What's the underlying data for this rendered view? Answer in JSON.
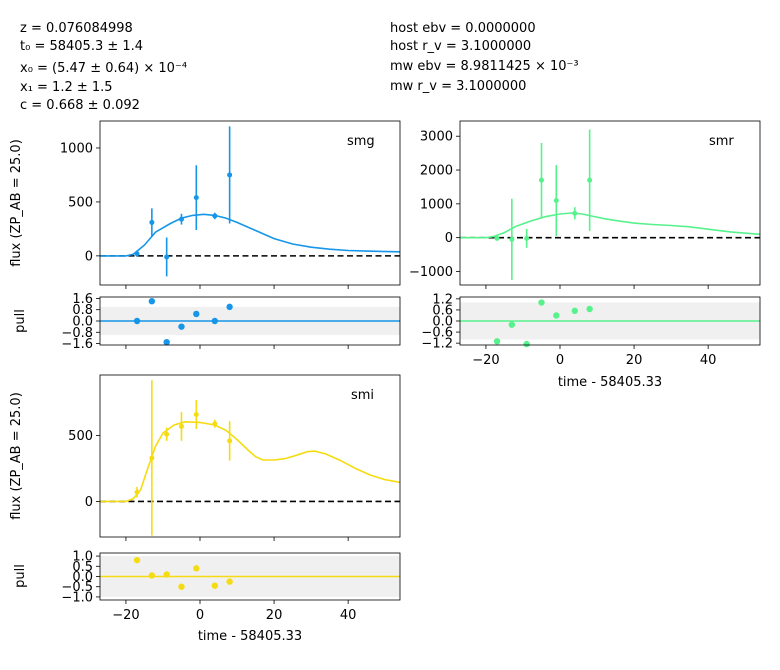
{
  "fit_params": {
    "left": [
      "z = 0.076084998",
      "t₀ = 58405.3 ± 1.4",
      "x₀ = (5.47 ± 0.64) × 10⁻⁴",
      "x₁ = 1.2 ± 1.5",
      "c = 0.668 ± 0.092"
    ],
    "right": [
      "host ebv = 0.0000000",
      "host r_v = 3.1000000",
      "mw ebv = 8.9811425 × 10⁻³",
      "mw r_v = 3.1000000"
    ]
  },
  "chart_data": [
    {
      "type": "scatter",
      "panel": "smg",
      "band": "smg",
      "color": "#1696e8",
      "ylabel": "flux (ZP_AB = 25.0)",
      "xlabel": "",
      "xlim": [
        -27,
        54
      ],
      "ylim": [
        -270,
        1250
      ],
      "yticks": [
        0,
        500,
        1000
      ],
      "xticks": [
        -20,
        0,
        20,
        40
      ],
      "zero_line": true,
      "points": [
        {
          "x": -17,
          "y": 20,
          "err": 30
        },
        {
          "x": -13,
          "y": 310,
          "err": 130
        },
        {
          "x": -9,
          "y": -10,
          "err": 180
        },
        {
          "x": -5,
          "y": 340,
          "err": 50
        },
        {
          "x": -1,
          "y": 540,
          "err": 300
        },
        {
          "x": 4,
          "y": 370,
          "err": 30
        },
        {
          "x": 8,
          "y": 750,
          "err": 450
        }
      ],
      "model": [
        [
          -27,
          0
        ],
        [
          -20,
          0
        ],
        [
          -18,
          15
        ],
        [
          -15,
          100
        ],
        [
          -12,
          220
        ],
        [
          -8,
          300
        ],
        [
          -5,
          350
        ],
        [
          -2,
          375
        ],
        [
          1,
          385
        ],
        [
          4,
          375
        ],
        [
          7,
          350
        ],
        [
          10,
          310
        ],
        [
          15,
          235
        ],
        [
          20,
          160
        ],
        [
          25,
          110
        ],
        [
          30,
          80
        ],
        [
          35,
          62
        ],
        [
          40,
          50
        ],
        [
          45,
          44
        ],
        [
          54,
          38
        ]
      ]
    },
    {
      "type": "scatter",
      "panel": "smg-pull",
      "color": "#1696e8",
      "ylabel": "pull",
      "xlim": [
        -27,
        54
      ],
      "ylim": [
        -1.7,
        1.7
      ],
      "yticks": [
        -1.6,
        -0.8,
        0.0,
        0.8,
        1.6
      ],
      "ytick_labels": [
        "−1.6",
        "−0.8",
        "0.0",
        "0.8",
        "1.6"
      ],
      "xticks": [
        -20,
        0,
        20,
        40
      ],
      "band_limits": [
        -1,
        1
      ],
      "points": [
        {
          "x": -17,
          "y": 0.0
        },
        {
          "x": -13,
          "y": 1.4
        },
        {
          "x": -9,
          "y": -1.5
        },
        {
          "x": -5,
          "y": -0.4
        },
        {
          "x": -1,
          "y": 0.5
        },
        {
          "x": 4,
          "y": 0.0
        },
        {
          "x": 8,
          "y": 1.0
        }
      ]
    },
    {
      "type": "scatter",
      "panel": "smr",
      "band": "smr",
      "color": "#57f28c",
      "ylabel": "",
      "xlabel": "",
      "xlim": [
        -27,
        54
      ],
      "ylim": [
        -1400,
        3450
      ],
      "yticks": [
        -1000,
        0,
        1000,
        2000,
        3000
      ],
      "ytick_labels": [
        "−1000",
        "0",
        "1000",
        "2000",
        "3000"
      ],
      "xticks": [
        -20,
        0,
        20,
        40
      ],
      "zero_line": true,
      "points": [
        {
          "x": -17,
          "y": -20,
          "err": 60
        },
        {
          "x": -13,
          "y": -50,
          "err": 1200
        },
        {
          "x": -9,
          "y": -20,
          "err": 280
        },
        {
          "x": -5,
          "y": 1700,
          "err": 1100
        },
        {
          "x": -1,
          "y": 1100,
          "err": 1050
        },
        {
          "x": 4,
          "y": 720,
          "err": 180
        },
        {
          "x": 8,
          "y": 1700,
          "err": 1500
        }
      ],
      "model": [
        [
          -27,
          0
        ],
        [
          -20,
          0
        ],
        [
          -18,
          30
        ],
        [
          -15,
          150
        ],
        [
          -12,
          330
        ],
        [
          -8,
          490
        ],
        [
          -4,
          620
        ],
        [
          0,
          700
        ],
        [
          3,
          730
        ],
        [
          6,
          700
        ],
        [
          9,
          630
        ],
        [
          12,
          560
        ],
        [
          16,
          490
        ],
        [
          20,
          430
        ],
        [
          25,
          390
        ],
        [
          30,
          360
        ],
        [
          35,
          320
        ],
        [
          40,
          250
        ],
        [
          46,
          170
        ],
        [
          54,
          100
        ]
      ]
    },
    {
      "type": "scatter",
      "panel": "smr-pull",
      "color": "#57f28c",
      "ylabel": "",
      "xlabel": "time - 58405.33",
      "xlim": [
        -27,
        54
      ],
      "ylim": [
        -1.3,
        1.3
      ],
      "yticks": [
        -1.2,
        -0.6,
        0.0,
        0.6,
        1.2
      ],
      "ytick_labels": [
        "−1.2",
        "−0.6",
        "0.0",
        "0.6",
        "1.2"
      ],
      "xticks": [
        -20,
        0,
        20,
        40
      ],
      "xtick_labels": [
        "−20",
        "0",
        "20",
        "40"
      ],
      "band_limits": [
        -1,
        1
      ],
      "points": [
        {
          "x": -17,
          "y": -1.1
        },
        {
          "x": -13,
          "y": -0.2
        },
        {
          "x": -9,
          "y": -1.25
        },
        {
          "x": -5,
          "y": 1.0
        },
        {
          "x": -1,
          "y": 0.3
        },
        {
          "x": 4,
          "y": 0.55
        },
        {
          "x": 8,
          "y": 0.65
        }
      ]
    },
    {
      "type": "scatter",
      "panel": "smi",
      "band": "smi",
      "color": "#f5dc12",
      "ylabel": "flux (ZP_AB = 25.0)",
      "xlabel": "",
      "xlim": [
        -27,
        54
      ],
      "ylim": [
        -270,
        960
      ],
      "yticks": [
        0,
        500
      ],
      "xticks": [
        -20,
        0,
        20,
        40
      ],
      "zero_line": true,
      "points": [
        {
          "x": -17,
          "y": 70,
          "err": 40
        },
        {
          "x": -13,
          "y": 330,
          "err": 590
        },
        {
          "x": -9,
          "y": 510,
          "err": 50
        },
        {
          "x": -5,
          "y": 570,
          "err": 110
        },
        {
          "x": -1,
          "y": 660,
          "err": 110
        },
        {
          "x": 4,
          "y": 590,
          "err": 30
        },
        {
          "x": 8,
          "y": 460,
          "err": 150
        }
      ],
      "model": [
        [
          -27,
          0
        ],
        [
          -20,
          0
        ],
        [
          -18,
          20
        ],
        [
          -16,
          90
        ],
        [
          -14,
          260
        ],
        [
          -12,
          420
        ],
        [
          -10,
          520
        ],
        [
          -7,
          580
        ],
        [
          -4,
          605
        ],
        [
          0,
          600
        ],
        [
          4,
          580
        ],
        [
          7,
          540
        ],
        [
          10,
          470
        ],
        [
          13,
          390
        ],
        [
          15,
          340
        ],
        [
          17,
          315
        ],
        [
          20,
          315
        ],
        [
          23,
          325
        ],
        [
          26,
          350
        ],
        [
          29,
          378
        ],
        [
          31,
          382
        ],
        [
          34,
          360
        ],
        [
          38,
          310
        ],
        [
          42,
          250
        ],
        [
          46,
          200
        ],
        [
          50,
          165
        ],
        [
          54,
          145
        ]
      ]
    },
    {
      "type": "scatter",
      "panel": "smi-pull",
      "color": "#f5dc12",
      "ylabel": "pull",
      "xlabel": "time - 58405.33",
      "xlim": [
        -27,
        54
      ],
      "ylim": [
        -1.15,
        1.15
      ],
      "yticks": [
        -1.0,
        -0.5,
        0.0,
        0.5,
        1.0
      ],
      "ytick_labels": [
        "−1.0",
        "−0.5",
        "0.0",
        "0.5",
        "1.0"
      ],
      "xticks": [
        -20,
        0,
        20,
        40
      ],
      "xtick_labels": [
        "−20",
        "0",
        "20",
        "40"
      ],
      "band_limits": [
        -1,
        1
      ],
      "points": [
        {
          "x": -17,
          "y": 0.8
        },
        {
          "x": -13,
          "y": 0.05
        },
        {
          "x": -9,
          "y": 0.1
        },
        {
          "x": -5,
          "y": -0.5
        },
        {
          "x": -1,
          "y": 0.4
        },
        {
          "x": 4,
          "y": -0.45
        },
        {
          "x": 8,
          "y": -0.25
        }
      ]
    }
  ]
}
